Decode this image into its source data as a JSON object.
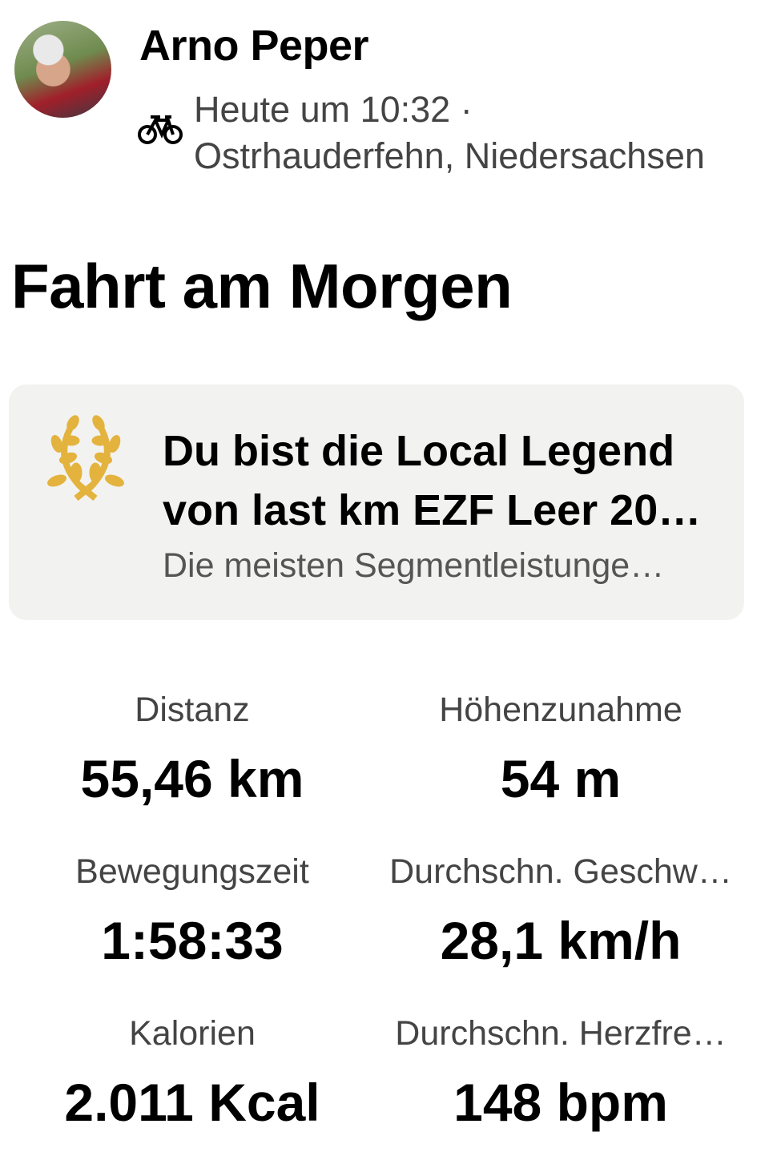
{
  "header": {
    "athlete_name": "Arno Peper",
    "activity_icon": "bike-icon",
    "time": "Heute um 10:32 ·",
    "location": "Ostrhauderfehn, Niedersachsen"
  },
  "activity": {
    "title": "Fahrt am Morgen"
  },
  "achievement": {
    "icon": "laurel-wreath-icon",
    "icon_color": "#E3B33E",
    "title": "Du bist die Local Legend von last km EZF Leer 20…",
    "subtitle": "Die meisten Segmentleistunge…"
  },
  "stats": [
    {
      "label": "Distanz",
      "value": "55,46 km"
    },
    {
      "label": "Höhenzunahme",
      "value": "54 m"
    },
    {
      "label": "Bewegungszeit",
      "value": "1:58:33"
    },
    {
      "label": "Durchschn. Geschw…",
      "value": "28,1 km/h"
    },
    {
      "label": "Kalorien",
      "value": "2.011 Kcal"
    },
    {
      "label": "Durchschn. Herzfre…",
      "value": "148 bpm"
    }
  ]
}
